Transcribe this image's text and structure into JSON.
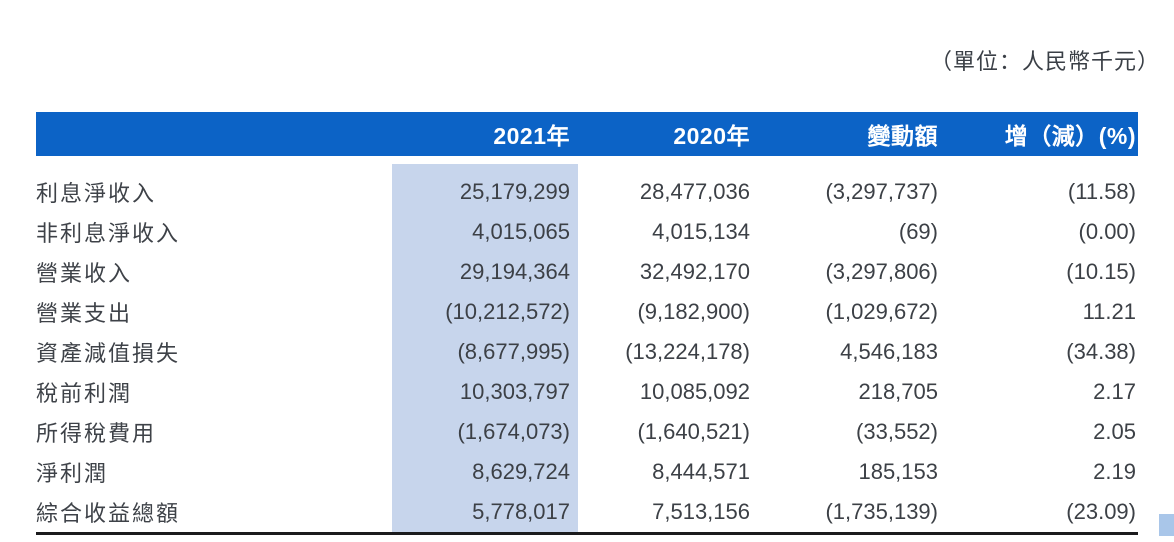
{
  "page": {
    "unit_note": "（單位：人民幣千元）"
  },
  "colors": {
    "header_bg": "#0c63c6",
    "highlight_col": "#c7d5ec",
    "text": "#3c4046",
    "rule": "#1b1b1d",
    "header_text": "#ffffff"
  },
  "table": {
    "columns": {
      "label": "",
      "y2021": "2021年",
      "y2020": "2020年",
      "change": "變動額",
      "pct": "增（減）(%)"
    },
    "rows": [
      {
        "label": "利息淨收入",
        "y2021": "25,179,299",
        "y2020": "28,477,036",
        "change": "(3,297,737)",
        "pct": "(11.58)"
      },
      {
        "label": "非利息淨收入",
        "y2021": "4,015,065",
        "y2020": "4,015,134",
        "change": "(69)",
        "pct": "(0.00)"
      },
      {
        "label": "營業收入",
        "y2021": "29,194,364",
        "y2020": "32,492,170",
        "change": "(3,297,806)",
        "pct": "(10.15)"
      },
      {
        "label": "營業支出",
        "y2021": "(10,212,572)",
        "y2020": "(9,182,900)",
        "change": "(1,029,672)",
        "pct": "11.21"
      },
      {
        "label": "資產減值損失",
        "y2021": "(8,677,995)",
        "y2020": "(13,224,178)",
        "change": "4,546,183",
        "pct": "(34.38)"
      },
      {
        "label": "稅前利潤",
        "y2021": "10,303,797",
        "y2020": "10,085,092",
        "change": "218,705",
        "pct": "2.17"
      },
      {
        "label": "所得稅費用",
        "y2021": "(1,674,073)",
        "y2020": "(1,640,521)",
        "change": "(33,552)",
        "pct": "2.05"
      },
      {
        "label": "淨利潤",
        "y2021": "8,629,724",
        "y2020": "8,444,571",
        "change": "185,153",
        "pct": "2.19"
      },
      {
        "label": "綜合收益總額",
        "y2021": "5,778,017",
        "y2020": "7,513,156",
        "change": "(1,735,139)",
        "pct": "(23.09)"
      }
    ]
  }
}
